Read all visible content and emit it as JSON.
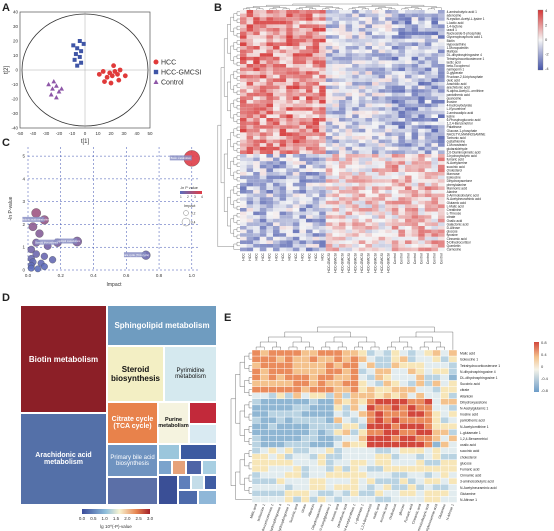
{
  "panels": {
    "a": "A",
    "b": "B",
    "c": "C",
    "d": "D",
    "e": "E"
  },
  "pca": {
    "xlabel": "t[1]",
    "ylabel": "t[2]",
    "xticks": [
      "-50",
      "-40",
      "-30",
      "-20",
      "-10",
      "0",
      "10",
      "20",
      "30",
      "40",
      "50"
    ],
    "yticks": [
      "40",
      "30",
      "20",
      "10",
      "0",
      "-10",
      "-20",
      "-30",
      "-40"
    ],
    "legend": [
      "HCC",
      "HCC-GMCSI",
      "Control"
    ],
    "colors": {
      "hcc": "#e03a3a",
      "gmcsi": "#3f55a6",
      "control": "#8e57a8"
    },
    "points": {
      "hcc": [
        [
          11,
          -3
        ],
        [
          14,
          -1
        ],
        [
          17,
          -5
        ],
        [
          19,
          -2
        ],
        [
          21,
          -4
        ],
        [
          23,
          -1
        ],
        [
          25,
          -3
        ],
        [
          27,
          0
        ],
        [
          15,
          -8
        ],
        [
          20,
          -9
        ],
        [
          26,
          -7
        ],
        [
          31,
          -4
        ],
        [
          22,
          3
        ]
      ],
      "gmcsi": [
        [
          -9,
          17
        ],
        [
          -6,
          15
        ],
        [
          -3,
          13
        ],
        [
          -7,
          11
        ],
        [
          -4,
          9
        ],
        [
          -1,
          18
        ],
        [
          -8,
          7
        ],
        [
          -3,
          5
        ],
        [
          -6,
          3
        ],
        [
          -4,
          20
        ]
      ],
      "control": [
        [
          -28,
          -10
        ],
        [
          -25,
          -13
        ],
        [
          -22,
          -11
        ],
        [
          -20,
          -15
        ],
        [
          -26,
          -17
        ],
        [
          -22,
          -19
        ],
        [
          -18,
          -13
        ],
        [
          -24,
          -8
        ]
      ]
    }
  },
  "heatmapB": {
    "labels": [
      "4-aminobutyric acid 1",
      "adenosine",
      "N-epsilon-Acetyl-L-lysine 1",
      "L-lactic acid",
      "1,4-lactone",
      "uracil 1",
      "Nucleoside-5-phosphate",
      "Glycerophosphoric acid 1",
      "Biotin",
      "Hypoxanthine",
      "1-Monopalmitin",
      "Maltose",
      "DL-dihydrosphingosine 4",
      "Tetrahydrocorticosterone 1",
      "lactic acid",
      "beta-Tocopherol",
      "naringenin 1",
      "D-glycerate",
      "Fructose-2,6-biphosphate",
      "oleic acid",
      "Arachidic acid",
      "arachidonic acid",
      "N-alpha-Acetyl-L-ornithine",
      "pantothenic acid",
      "guanosine",
      "Inosine",
      "4-hydroxybutyrate",
      "L-Kynurenine",
      "2-aminoadipic acid",
      "lysine",
      "6-Phosphogluconic acid",
      "1,2,4-Benzenetriol",
      "Palatinose",
      "Glucose-1-phosphate",
      "NACETYLMANNOSAMINE",
      "Tartronic acid",
      "cystathionine",
      "1-Monostearin",
      "glutaraldehyde",
      "2,6-Diaminopimelic acid",
      "3-hydroxybutyric acid",
      "fumaric acid",
      "N-Acetylserine",
      "succinic acid",
      "cholesterol",
      "Mannose",
      "isoleucine",
      "Dihydroxyacetone",
      "phenylalanine",
      "Mannonic acid",
      "Alanine",
      "3-Aminoisobutyric acid",
      "N-Acetylneuraminic acid",
      "Glutamic acid",
      "L-Malic acid",
      "Creatinine",
      "L-Threose",
      "citrate",
      "Oxalic acid",
      "Galactonic acid",
      "D-Altrose",
      "glucose",
      "tyrosine",
      "Cinnamic acid",
      "5-Dihydrocortisol",
      "Quercetin",
      "Carnosine"
    ],
    "colorbar": [
      "4",
      "2",
      "0",
      "-2",
      "-4"
    ],
    "samples": [
      "HCC",
      "HCC",
      "HCC",
      "HCC",
      "HCC",
      "HCC",
      "HCC",
      "HCC",
      "HCC",
      "HCC",
      "HCC",
      "HCC",
      "HCC",
      "HCC-GMCSI",
      "HCC-GMCSI",
      "HCC-GMCSI",
      "HCC-GMCSI",
      "HCC-GMCSI",
      "HCC-GMCSI",
      "HCC-GMCSI",
      "HCC-GMCSI",
      "HCC-GMCSI",
      "HCC-GMCSI",
      "Control",
      "Control",
      "Control",
      "Control",
      "Control",
      "Control",
      "Control",
      "Control"
    ]
  },
  "bubble": {
    "xlabel": "Impact",
    "ylabel": "-ln P-value",
    "legend_title": "-ln P value",
    "legend_ticks": [
      "1",
      "2",
      "3",
      "4"
    ],
    "impact_title": "Impact",
    "impact_ticks": [
      "0.2",
      "0.4"
    ],
    "xticks": [
      "0.0",
      "0.2",
      "0.4",
      "0.6",
      "0.8",
      "1.0"
    ],
    "yticks": [
      "0",
      "1",
      "2",
      "3",
      "4",
      "5"
    ],
    "labels": [
      "Biotin metabolism",
      "Sphingolipid metabolism",
      "Arachidonic acid metabolism",
      "Citrate cycle (TCA cycle)",
      "Steroid biosynthesis"
    ]
  },
  "chart_data": [
    {
      "type": "scatter",
      "title": "",
      "xlabel": "Impact",
      "ylabel": "-ln P-value",
      "xlim": [
        0,
        1.05
      ],
      "ylim": [
        0,
        5.4
      ],
      "series": [
        {
          "points": [
            {
              "x": 1.0,
              "y": 4.9,
              "r": 0.5,
              "c": 4.9
            },
            {
              "x": 0.05,
              "y": 2.5,
              "r": 0.22,
              "c": 2.5
            },
            {
              "x": 0.1,
              "y": 2.2,
              "r": 0.2,
              "c": 2.2
            },
            {
              "x": 0.03,
              "y": 1.9,
              "r": 0.18,
              "c": 1.9
            },
            {
              "x": 0.07,
              "y": 1.6,
              "r": 0.16,
              "c": 1.6
            },
            {
              "x": 0.3,
              "y": 1.25,
              "r": 0.22,
              "c": 1.3
            },
            {
              "x": 0.18,
              "y": 1.2,
              "r": 0.17,
              "c": 1.2
            },
            {
              "x": 0.05,
              "y": 1.2,
              "r": 0.15,
              "c": 1.2
            },
            {
              "x": 0.12,
              "y": 1.05,
              "r": 0.14,
              "c": 1.0
            },
            {
              "x": 0.02,
              "y": 0.9,
              "r": 0.13,
              "c": 0.9
            },
            {
              "x": 0.05,
              "y": 0.7,
              "r": 0.13,
              "c": 0.7
            },
            {
              "x": 0.72,
              "y": 0.65,
              "r": 0.2,
              "c": 0.65
            },
            {
              "x": 0.1,
              "y": 0.6,
              "r": 0.12,
              "c": 0.6
            },
            {
              "x": 0.02,
              "y": 0.5,
              "r": 0.12,
              "c": 0.5
            },
            {
              "x": 0.15,
              "y": 0.45,
              "r": 0.12,
              "c": 0.45
            },
            {
              "x": 0.03,
              "y": 0.35,
              "r": 0.12,
              "c": 0.35
            },
            {
              "x": 0.08,
              "y": 0.3,
              "r": 0.11,
              "c": 0.3
            },
            {
              "x": 0.02,
              "y": 0.2,
              "r": 0.11,
              "c": 0.2
            },
            {
              "x": 0.1,
              "y": 0.15,
              "r": 0.11,
              "c": 0.15
            },
            {
              "x": 0.02,
              "y": 0.08,
              "r": 0.1,
              "c": 0.1
            },
            {
              "x": 0.06,
              "y": 0.05,
              "r": 0.1,
              "c": 0.05
            }
          ]
        }
      ],
      "legend": "right"
    },
    {
      "type": "treemap",
      "title": "",
      "colorbar_label": "lg 10^(-P)-value",
      "colorbar_ticks": [
        "0.0",
        "0.5",
        "1.0",
        "1.5",
        "2.0",
        "2.5",
        "3.0"
      ],
      "items": [
        {
          "name": "Biotin metabolism",
          "value": 3.0
        },
        {
          "name": "Arachidonic acid metabolism",
          "value": 0.6
        },
        {
          "name": "Sphingolipid metabolism",
          "value": 0.8
        },
        {
          "name": "Steroid biosynthesis",
          "value": 1.9
        },
        {
          "name": "Pyrimidine metabolism",
          "value": 1.7
        },
        {
          "name": "Citrate cycle (TCA cycle)",
          "value": 2.6
        },
        {
          "name": "Purine metabolism",
          "value": 1.8
        },
        {
          "name": "Primary bile acid biosynthesis",
          "value": 0.7
        }
      ]
    }
  ],
  "treemap": {
    "labels": {
      "biotin": "Biotin metabolism",
      "arachidonic": "Arachidonic acid metabolism",
      "sphingo": "Sphingolipid metabolism",
      "steroid": "Steroid biosynthesis",
      "pyrimidine": "Pyrimidine metabolism",
      "tca": "Citrate cycle (TCA cycle)",
      "purine": "Purine metabolism",
      "bile": "Primary bile acid biosynthesis"
    },
    "colorbar_label": "lg 10^(-P)-value",
    "colorbar_ticks": [
      "0.0",
      "0.5",
      "1.0",
      "1.5",
      "2.0",
      "2.5",
      "3.0"
    ]
  },
  "heatmapE": {
    "row_labels": [
      "Malic acid",
      "Isoleucine 1",
      "Tetrahydrocorticosterone 1",
      "N-dihydrosphingosine 4",
      "DL-dihydrosphingosine 1",
      "Succinic acid",
      "citrate",
      "Allantoin",
      "Dihydroxyacetone",
      "N-Acetylglutamic 1",
      "Inosine acid",
      "pantothenic acid",
      "N-Acetylornithine 1",
      "L-glutamate 1",
      "1,2,4-Benzenetriol",
      "oxalic acid",
      "succinic acid",
      "cholesterol",
      "glucose",
      "Fumaric acid",
      "Cinnamic acid",
      "3-aminoisobutyric acid",
      "N-Acetylneuraminic acid",
      "Glutamine",
      "N-Altrose 1"
    ],
    "colorbar": [
      "0.8",
      "0.4",
      "0",
      "-0.4",
      "-0.8"
    ]
  }
}
